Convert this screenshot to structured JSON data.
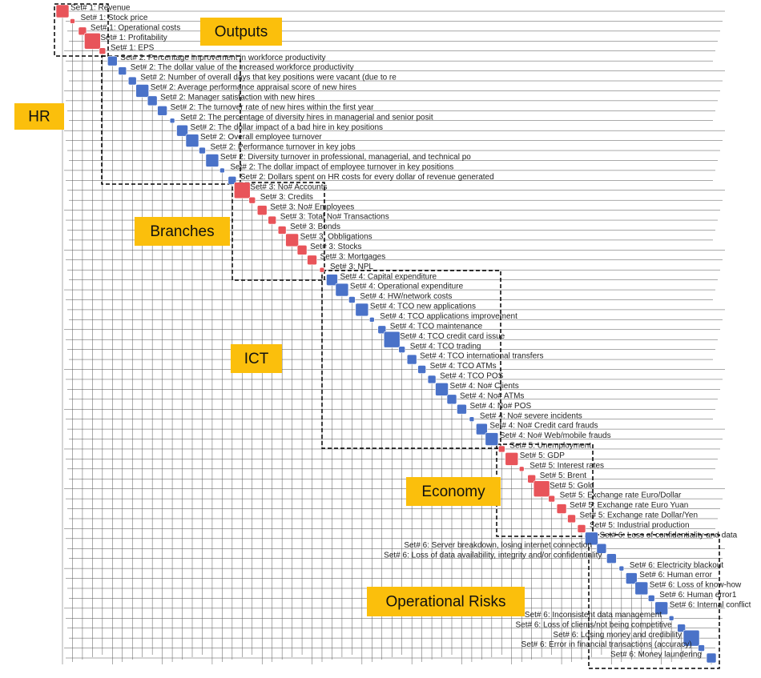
{
  "groups": [
    {
      "label": "Outputs",
      "color": "#e8545a"
    },
    {
      "label": "HR",
      "color": "#4a72c8"
    },
    {
      "label": "Branches",
      "color": "#e8545a"
    },
    {
      "label": "ICT",
      "color": "#4a72c8"
    },
    {
      "label": "Economy",
      "color": "#e8545a"
    },
    {
      "label": "Operational Risks",
      "color": "#4a72c8"
    }
  ],
  "nodes": [
    {
      "group": 0,
      "label": "Set# 1: Revenue"
    },
    {
      "group": 0,
      "label": "Set# 1: Stock price"
    },
    {
      "group": 0,
      "label": "Set# 1: Operational costs"
    },
    {
      "group": 0,
      "label": "Set# 1: Profitability"
    },
    {
      "group": 0,
      "label": "Set# 1: EPS"
    },
    {
      "group": 1,
      "label": "Set# 2: Percentage improvement in workforce productivity"
    },
    {
      "group": 1,
      "label": "Set# 2: The dollar value of the increased workforce productivity"
    },
    {
      "group": 1,
      "label": "Set# 2: Number of overall days that key positions were vacant (due to re"
    },
    {
      "group": 1,
      "label": "Set# 2: Average performance appraisal score of new hires"
    },
    {
      "group": 1,
      "label": "Set# 2: Manager satisfaction with new hires"
    },
    {
      "group": 1,
      "label": "Set# 2: The turnover rate of new hires within the first year"
    },
    {
      "group": 1,
      "label": "Set# 2: The percentage of diversity hires in managerial and senior posit"
    },
    {
      "group": 1,
      "label": "Set# 2: The dollar impact of a bad hire in key positions"
    },
    {
      "group": 1,
      "label": "Set# 2: Overall employee turnover"
    },
    {
      "group": 1,
      "label": "Set# 2: Performance turnover in key jobs"
    },
    {
      "group": 1,
      "label": "Set# 2: Diversity turnover in professional, managerial, and technical po"
    },
    {
      "group": 1,
      "label": "Set# 2: The dollar impact of employee turnover in key positions"
    },
    {
      "group": 1,
      "label": "Set# 2: Dollars spent on HR costs for every dollar of revenue generated"
    },
    {
      "group": 2,
      "label": "Set# 3: No# Accounts"
    },
    {
      "group": 2,
      "label": "Set# 3: Credits"
    },
    {
      "group": 2,
      "label": "Set# 3: No# Employees"
    },
    {
      "group": 2,
      "label": "Set# 3: Total No# Transactions"
    },
    {
      "group": 2,
      "label": "Set# 3: Bonds"
    },
    {
      "group": 2,
      "label": "Set# 3: Obbligations"
    },
    {
      "group": 2,
      "label": "Set# 3: Stocks"
    },
    {
      "group": 2,
      "label": "Set# 3: Mortgages"
    },
    {
      "group": 2,
      "label": "Set# 3: NPL"
    },
    {
      "group": 3,
      "label": "Set# 4: Capital expenditure"
    },
    {
      "group": 3,
      "label": "Set# 4: Operational expenditure"
    },
    {
      "group": 3,
      "label": "Set# 4: HW/network costs"
    },
    {
      "group": 3,
      "label": "Set# 4: TCO new applications"
    },
    {
      "group": 3,
      "label": "Set# 4: TCO applications improvement"
    },
    {
      "group": 3,
      "label": "Set# 4: TCO maintenance"
    },
    {
      "group": 3,
      "label": "Set# 4: TCO credit card issue"
    },
    {
      "group": 3,
      "label": "Set# 4: TCO trading"
    },
    {
      "group": 3,
      "label": "Set# 4: TCO international transfers"
    },
    {
      "group": 3,
      "label": "Set# 4: TCO ATMs"
    },
    {
      "group": 3,
      "label": "Set# 4: TCO POS"
    },
    {
      "group": 3,
      "label": "Set# 4: No# Clients"
    },
    {
      "group": 3,
      "label": "Set# 4: No# ATMs"
    },
    {
      "group": 3,
      "label": "Set# 4: No# POS"
    },
    {
      "group": 3,
      "label": "Set# 4: No# severe incidents"
    },
    {
      "group": 3,
      "label": "Set# 4: No# Credit card frauds"
    },
    {
      "group": 3,
      "label": "Set# 4: No# Web/mobile frauds"
    },
    {
      "group": 4,
      "label": "Set# 5: Unemployment"
    },
    {
      "group": 4,
      "label": "Set# 5: GDP"
    },
    {
      "group": 4,
      "label": "Set# 5: Interest rates"
    },
    {
      "group": 4,
      "label": "Set# 5: Brent"
    },
    {
      "group": 4,
      "label": "Set# 5: Gold"
    },
    {
      "group": 4,
      "label": "Set# 5: Exchange rate Euro/Dollar"
    },
    {
      "group": 4,
      "label": "Set# 5: Exchange rate Euro Yuan"
    },
    {
      "group": 4,
      "label": "Set# 5: Exchange rate Dollar/Yen"
    },
    {
      "group": 4,
      "label": "Set# 5: Industrial production"
    },
    {
      "group": 5,
      "label": "Set# 6: Loss of confidentiality and data"
    },
    {
      "group": 5,
      "label": "Set# 6: Server breakdown, losing internet connection"
    },
    {
      "group": 5,
      "label": "Set# 6: Loss of data availability, integrity and/or confidentiality"
    },
    {
      "group": 5,
      "label": "Set# 6: Electricity blackout"
    },
    {
      "group": 5,
      "label": "Set# 6: Human error"
    },
    {
      "group": 5,
      "label": "Set# 6: Loss of know-how"
    },
    {
      "group": 5,
      "label": "Set# 6: Human error1"
    },
    {
      "group": 5,
      "label": "Set# 6: Internal conflict"
    },
    {
      "group": 5,
      "label": "Set# 6: Inconsistent data management"
    },
    {
      "group": 5,
      "label": "Set# 6: Loss of clients/not being competitive"
    },
    {
      "group": 5,
      "label": "Set# 6: Losing money and credibility"
    },
    {
      "group": 5,
      "label": "Set# 6: Error in financial transactions (accuracy)"
    },
    {
      "group": 5,
      "label": "Set# 6: Money laundering"
    }
  ]
}
